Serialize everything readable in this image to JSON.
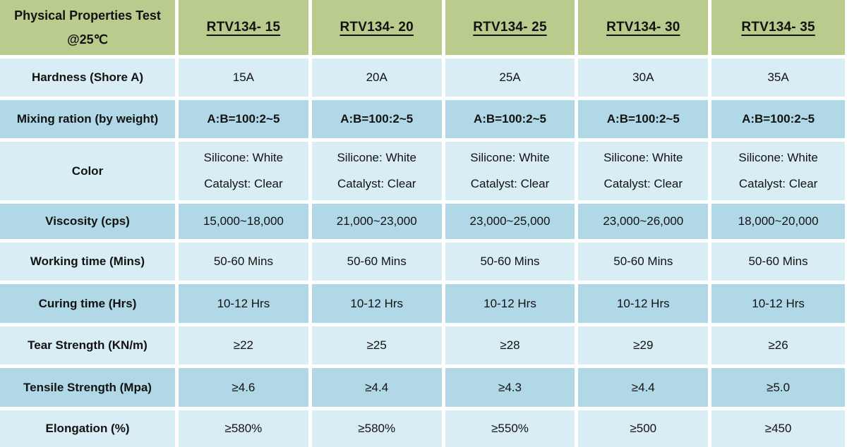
{
  "chart_data": {
    "type": "table",
    "title": "Physical Properties Test @25℃",
    "corner": {
      "line1": "Physical Properties Test",
      "line2": "@25℃"
    },
    "columns": [
      "RTV134- 15",
      "RTV134- 20",
      "RTV134- 25",
      "RTV134- 30",
      "RTV134- 35"
    ],
    "rows": [
      {
        "label": "Hardness (Shore A)",
        "values": [
          "15A",
          "20A",
          "25A",
          "30A",
          "35A"
        ]
      },
      {
        "label": "Mixing ration (by weight)",
        "values": [
          "A:B=100:2~5",
          "A:B=100:2~5",
          "A:B=100:2~5",
          "A:B=100:2~5",
          "A:B=100:2~5"
        ],
        "emphasis": "bold"
      },
      {
        "label": "Color",
        "lines": [
          [
            "Silicone: White",
            "Catalyst: Clear"
          ],
          [
            "Silicone: White",
            "Catalyst: Clear"
          ],
          [
            "Silicone: White",
            "Catalyst: Clear"
          ],
          [
            "Silicone: White",
            "Catalyst: Clear"
          ],
          [
            "Silicone: White",
            "Catalyst: Clear"
          ]
        ]
      },
      {
        "label": "Viscosity (cps)",
        "values": [
          "15,000~18,000",
          "21,000~23,000",
          "23,000~25,000",
          "23,000~26,000",
          "18,000~20,000"
        ]
      },
      {
        "label": "Working time (Mins)",
        "values": [
          "50-60 Mins",
          "50-60 Mins",
          "50-60 Mins",
          "50-60 Mins",
          "50-60 Mins"
        ]
      },
      {
        "label": "Curing time (Hrs)",
        "values": [
          "10-12 Hrs",
          "10-12 Hrs",
          "10-12 Hrs",
          "10-12 Hrs",
          "10-12 Hrs"
        ]
      },
      {
        "label": "Tear Strength (KN/m)",
        "values": [
          "≥22",
          "≥25",
          "≥28",
          "≥29",
          "≥26"
        ]
      },
      {
        "label": "Tensile Strength (Mpa)",
        "values": [
          "≥4.6",
          "≥4.4",
          "≥4.3",
          "≥4.4",
          "≥5.0"
        ]
      },
      {
        "label": "Elongation (%)",
        "values": [
          "≥580%",
          "≥580%",
          "≥550%",
          "≥500",
          "≥450"
        ]
      }
    ],
    "colors": {
      "header_bg": "#b9cc8e",
      "row_light": "#d9edf5",
      "row_medium": "#b0d8e6",
      "gridline": "#ffffff",
      "text": "#121212"
    },
    "layout": {
      "grid": "white 5px separators",
      "legend": "none"
    }
  }
}
